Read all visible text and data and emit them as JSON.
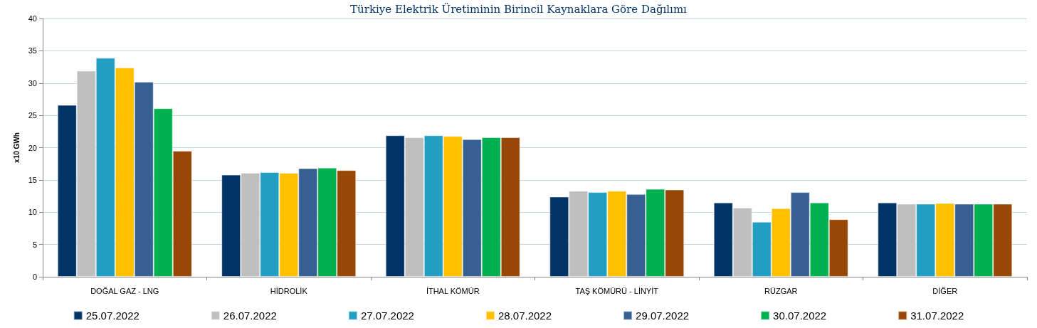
{
  "chart_data": {
    "type": "bar",
    "title": "Türkiye Elektrik Üretiminin Birincil Kaynaklara Göre Dağılımı",
    "ylabel": "x10 GWh",
    "categories": [
      "DOĞAL GAZ - LNG",
      "HİDROLİK",
      "İTHAL KÖMÜR",
      "TAŞ KÖMÜRÜ - LİNYİT",
      "RÜZGAR",
      "DİĞER"
    ],
    "series": [
      {
        "name": "25.07.2022",
        "color": "#003366",
        "values": [
          26.6,
          15.8,
          21.9,
          12.4,
          11.5,
          11.5
        ]
      },
      {
        "name": "26.07.2022",
        "color": "#bfbfbf",
        "values": [
          31.9,
          16.1,
          21.6,
          13.3,
          10.7,
          11.3
        ]
      },
      {
        "name": "27.07.2022",
        "color": "#219ec1",
        "values": [
          33.9,
          16.2,
          21.9,
          13.1,
          8.5,
          11.3
        ]
      },
      {
        "name": "28.07.2022",
        "color": "#ffc000",
        "values": [
          32.4,
          16.1,
          21.8,
          13.3,
          10.6,
          11.4
        ]
      },
      {
        "name": "29.07.2022",
        "color": "#366092",
        "values": [
          30.2,
          16.8,
          21.3,
          12.8,
          13.1,
          11.3
        ]
      },
      {
        "name": "30.07.2022",
        "color": "#00b050",
        "values": [
          26.1,
          16.9,
          21.6,
          13.6,
          11.5,
          11.3
        ]
      },
      {
        "name": "31.07.2022",
        "color": "#974706",
        "values": [
          19.5,
          16.5,
          21.6,
          13.5,
          8.9,
          11.3
        ]
      }
    ],
    "ylim": [
      0,
      40
    ],
    "yticks": [
      0,
      5,
      10,
      15,
      20,
      25,
      30,
      35,
      40
    ],
    "grid": "y",
    "legend": "bottom"
  }
}
